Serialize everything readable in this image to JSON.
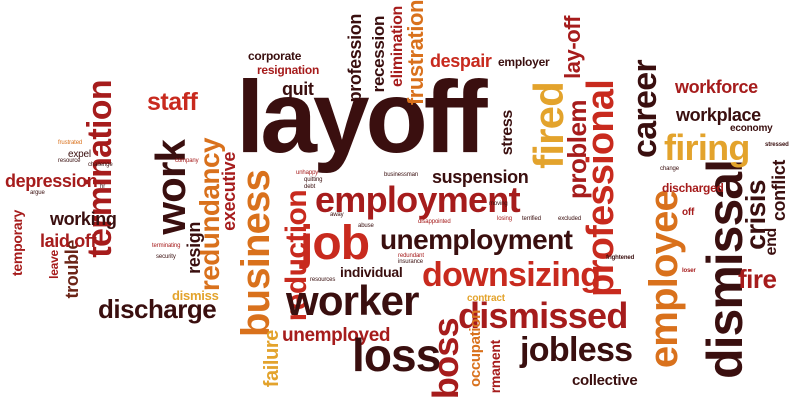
{
  "colors": {
    "dark": "#3a0f0f",
    "red": "#a61c1c",
    "brightred": "#c82a1e",
    "orange": "#d9711c",
    "gold": "#e3a32c",
    "brown": "#6b2416"
  },
  "words": {
    "layoff": "layoff",
    "employment": "employment",
    "job": "job",
    "unemployment": "unemployment",
    "downsizing": "downsizing",
    "worker": "worker",
    "dismissed": "dismissed",
    "jobless": "jobless",
    "loss": "loss",
    "business": "business",
    "termination": "termination",
    "work": "work",
    "redundancy": "redundancy",
    "fired": "fired",
    "career": "career",
    "firing": "firing",
    "employee": "employee",
    "dismissal": "dismissal",
    "crisis": "crisis",
    "fire": "fire",
    "boss": "boss",
    "professional": "professional",
    "discharge": "discharge",
    "depression": "depression",
    "staff": "staff",
    "quit": "quit",
    "despair": "despair",
    "frustration": "frustration",
    "lay_off": "lay-off",
    "suspension": "suspension",
    "workforce": "workforce",
    "workplace": "workplace",
    "conflict": "conflict",
    "working": "working",
    "laid_off": "laid off",
    "unemployed": "unemployed",
    "collective": "collective",
    "individual": "individual",
    "dismiss": "dismiss",
    "failure": "failure",
    "problem": "problem",
    "executive": "executive",
    "reduction": "reduction",
    "occupation": "occupation",
    "permanent": "rmanent",
    "temporary": "temporary",
    "trouble": "trouble",
    "resign": "resign",
    "recession": "recession",
    "elimination": "elimination",
    "profession": "profession",
    "corporate": "corporate",
    "resignation": "resignation",
    "employer": "employer",
    "stress": "stress",
    "economy": "economy",
    "discharged": "discharged",
    "end": "end",
    "contract": "contract",
    "leave": "leave",
    "expel": "expel",
    "resources": "resources",
    "frightened": "frightened",
    "excluded": "excluded",
    "losing": "losing",
    "terrified": "terrified",
    "disappointed": "disappointed",
    "abuse": "abuse",
    "businessman": "businessman",
    "moving": "moving",
    "redundant": "redundant",
    "insurance": "insurance",
    "leaving": "leaving",
    "difficulty": "difficulty",
    "manager": "manager",
    "unhappy": "unhappy",
    "quitting": "quitting",
    "debt": "debt",
    "change": "change",
    "human": "human",
    "stressed": "stressed",
    "reject": "reject",
    "off": "off",
    "loser": "loser",
    "fear": "fear",
    "fail": "fail",
    "fight": "fight",
    "security": "security",
    "terminating": "terminating",
    "resource": "resource",
    "challenge": "challenge",
    "company": "company",
    "penalty": "penalty",
    "punish": "punish",
    "issue": "issue",
    "frustrated": "frustrated",
    "unfair": "unfair",
    "social": "social",
    "argue": "argue",
    "personal": "personal",
    "hr": "hr",
    "away": "away",
    "mistake": "mistake",
    "depressed": "depressed",
    "decline": "decline",
    "distraught": "distraught",
    "angry": "angry",
    "dissatisfaction": "dissatisfaction",
    "boss_small": "boss"
  }
}
